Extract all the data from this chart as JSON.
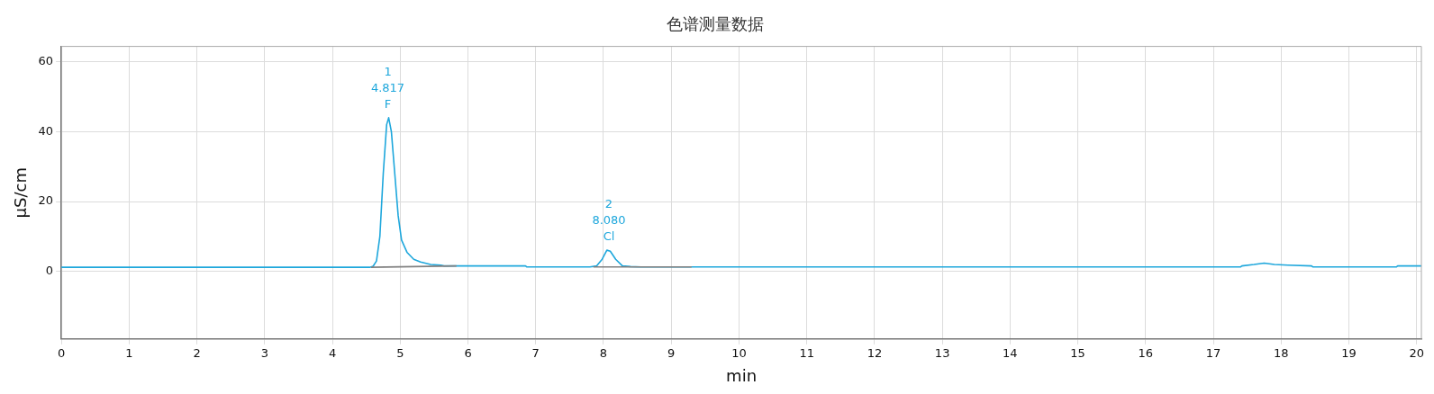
{
  "chart_data": {
    "type": "line",
    "title": "色谱测量数据",
    "xlabel": "min",
    "ylabel": "µS/cm",
    "xlim": [
      0,
      20.07
    ],
    "ylim": [
      -19.3,
      64.4
    ],
    "xticks": [
      0,
      1,
      2,
      3,
      4,
      5,
      6,
      7,
      8,
      9,
      10,
      11,
      12,
      13,
      14,
      15,
      16,
      17,
      18,
      19,
      20
    ],
    "yticks": [
      0,
      20,
      40,
      60
    ],
    "grid": true,
    "legend": false,
    "marker": "none",
    "line_style": "solid",
    "series": [
      {
        "color": "#1ea7dc",
        "x": [
          0,
          4.55,
          4.6,
          4.65,
          4.7,
          4.75,
          4.8,
          4.83,
          4.87,
          4.92,
          4.97,
          5.02,
          5.1,
          5.2,
          5.3,
          5.45,
          5.6,
          5.65,
          6.85,
          6.87,
          7.8,
          7.9,
          7.98,
          8.05,
          8.1,
          8.18,
          8.28,
          8.4,
          8.55,
          17.4,
          17.42,
          17.6,
          17.75,
          17.9,
          18.1,
          18.45,
          18.47,
          19.7,
          19.72,
          20.07
        ],
        "values": [
          1.2,
          1.2,
          1.5,
          3,
          10,
          28,
          42,
          44,
          40,
          28,
          16,
          9,
          5.5,
          3.5,
          2.7,
          2,
          1.8,
          1.6,
          1.6,
          1.3,
          1.3,
          1.6,
          3.5,
          6.1,
          5.8,
          3.5,
          1.6,
          1.4,
          1.3,
          1.3,
          1.6,
          2,
          2.4,
          2,
          1.8,
          1.6,
          1.3,
          1.3,
          1.6,
          1.6
        ]
      },
      {
        "color": "#808080",
        "x": [
          4.57,
          5.83,
          null,
          7.85,
          9.3
        ],
        "values": [
          1.2,
          1.6,
          null,
          1.3,
          1.3
        ]
      }
    ],
    "annotations": [
      {
        "text": "1\n4.817\nF",
        "x": 4.817,
        "y": 44
      },
      {
        "text": "2\n8.080\nCl",
        "x": 8.08,
        "y": 6.1
      }
    ]
  }
}
